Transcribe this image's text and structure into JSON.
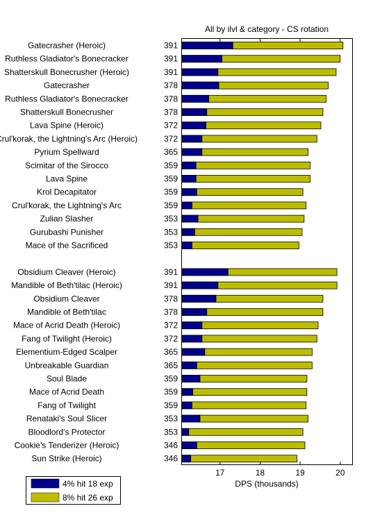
{
  "chart_data": {
    "type": "bar",
    "orientation": "horizontal",
    "stacked": true,
    "title": "All by ilvl & category - CS rotation",
    "xlabel": "DPS (thousands)",
    "ylabel": "",
    "xlim": [
      16.05,
      20.3
    ],
    "xticks": [
      "17",
      "18",
      "19",
      "20"
    ],
    "grid": false,
    "legend_position": "bottom-left",
    "series": [
      {
        "name": "4% hit 18 exp",
        "color": "#00008b"
      },
      {
        "name": "8% hit 26 exp",
        "color": "#bdbd00"
      }
    ],
    "groups": [
      {
        "items": [
          {
            "name": "Gatecrasher (Heroic)",
            "ilvl": "391",
            "low": 17.32,
            "high": 20.07
          },
          {
            "name": "Ruthless Gladiator's Bonecracker",
            "ilvl": "391",
            "low": 17.05,
            "high": 20.0
          },
          {
            "name": "Shatterskull Bonecrusher (Heroic)",
            "ilvl": "391",
            "low": 16.95,
            "high": 19.9
          },
          {
            "name": "Gatecrasher",
            "ilvl": "378",
            "low": 16.97,
            "high": 19.7
          },
          {
            "name": "Ruthless Gladiator's Bonecracker",
            "ilvl": "378",
            "low": 16.72,
            "high": 19.65
          },
          {
            "name": "Shatterskull Bonecrusher",
            "ilvl": "378",
            "low": 16.67,
            "high": 19.57
          },
          {
            "name": "Lava Spine (Heroic)",
            "ilvl": "372",
            "low": 16.65,
            "high": 19.52
          },
          {
            "name": "Crul'korak, the Lightning's Arc (Heroic)",
            "ilvl": "372",
            "low": 16.55,
            "high": 19.42
          },
          {
            "name": "Pyrium Spellward",
            "ilvl": "365",
            "low": 16.55,
            "high": 19.2
          },
          {
            "name": "Scimitar of the Sirocco",
            "ilvl": "359",
            "low": 16.4,
            "high": 19.25
          },
          {
            "name": "Lava Spine",
            "ilvl": "359",
            "low": 16.4,
            "high": 19.25
          },
          {
            "name": "Krol Decapitator",
            "ilvl": "359",
            "low": 16.42,
            "high": 19.07
          },
          {
            "name": "Crul'korak, the Lightning's Arc",
            "ilvl": "359",
            "low": 16.3,
            "high": 19.15
          },
          {
            "name": "Zulian Slasher",
            "ilvl": "353",
            "low": 16.45,
            "high": 19.1
          },
          {
            "name": "Gurubashi Punisher",
            "ilvl": "353",
            "low": 16.37,
            "high": 19.05
          },
          {
            "name": "Mace of the Sacrificed",
            "ilvl": "353",
            "low": 16.3,
            "high": 18.97
          }
        ]
      },
      {
        "items": [
          {
            "name": "Obsidium Cleaver (Heroic)",
            "ilvl": "391",
            "low": 17.2,
            "high": 19.92
          },
          {
            "name": "Mandible of Beth'tilac (Heroic)",
            "ilvl": "391",
            "low": 16.95,
            "high": 19.92
          },
          {
            "name": "Obsidium Cleaver",
            "ilvl": "378",
            "low": 16.9,
            "high": 19.57
          },
          {
            "name": "Mandible of Beth'tilac",
            "ilvl": "378",
            "low": 16.67,
            "high": 19.57
          },
          {
            "name": "Mace of Acrid Death (Heroic)",
            "ilvl": "372",
            "low": 16.55,
            "high": 19.45
          },
          {
            "name": "Fang of Twilight (Heroic)",
            "ilvl": "372",
            "low": 16.55,
            "high": 19.42
          },
          {
            "name": "Elementium-Edged Scalper",
            "ilvl": "365",
            "low": 16.62,
            "high": 19.3
          },
          {
            "name": "Unbreakable Guardian",
            "ilvl": "365",
            "low": 16.42,
            "high": 19.3
          },
          {
            "name": "Soul Blade",
            "ilvl": "359",
            "low": 16.5,
            "high": 19.17
          },
          {
            "name": "Mace of Acrid Death",
            "ilvl": "359",
            "low": 16.32,
            "high": 19.17
          },
          {
            "name": "Fang of Twilight",
            "ilvl": "359",
            "low": 16.3,
            "high": 19.15
          },
          {
            "name": "Renataki's Soul Slicer",
            "ilvl": "353",
            "low": 16.5,
            "high": 19.2
          },
          {
            "name": "Bloodlord's Protector",
            "ilvl": "353",
            "low": 16.22,
            "high": 19.07
          },
          {
            "name": "Cookie's Tenderizer (Heroic)",
            "ilvl": "346",
            "low": 16.42,
            "high": 19.12
          },
          {
            "name": "Sun Strike (Heroic)",
            "ilvl": "346",
            "low": 16.27,
            "high": 18.92
          }
        ]
      }
    ]
  }
}
